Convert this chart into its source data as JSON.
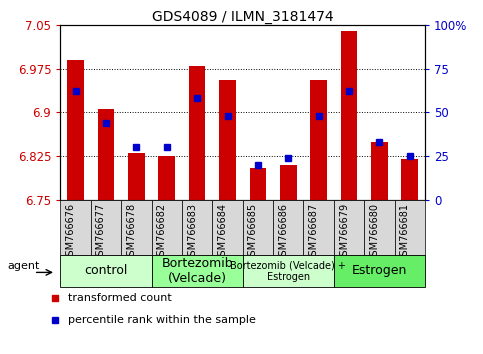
{
  "title": "GDS4089 / ILMN_3181474",
  "samples": [
    "GSM766676",
    "GSM766677",
    "GSM766678",
    "GSM766682",
    "GSM766683",
    "GSM766684",
    "GSM766685",
    "GSM766686",
    "GSM766687",
    "GSM766679",
    "GSM766680",
    "GSM766681"
  ],
  "transformed_count": [
    6.99,
    6.905,
    6.83,
    6.825,
    6.98,
    6.955,
    6.805,
    6.81,
    6.955,
    7.04,
    6.85,
    6.82
  ],
  "percentile_rank": [
    62,
    44,
    30,
    30,
    58,
    48,
    20,
    24,
    48,
    62,
    33,
    25
  ],
  "ylim_left": [
    6.75,
    7.05
  ],
  "ylim_right": [
    0,
    100
  ],
  "yticks_left": [
    6.75,
    6.825,
    6.9,
    6.975,
    7.05
  ],
  "yticks_right": [
    0,
    25,
    50,
    75,
    100
  ],
  "groups": [
    {
      "label": "control",
      "start": 0,
      "end": 3,
      "color": "#ccffcc",
      "fontsize": 9
    },
    {
      "label": "Bortezomib\n(Velcade)",
      "start": 3,
      "end": 6,
      "color": "#99ff99",
      "fontsize": 9
    },
    {
      "label": "Bortezomib (Velcade) +\nEstrogen",
      "start": 6,
      "end": 9,
      "color": "#ccffcc",
      "fontsize": 7
    },
    {
      "label": "Estrogen",
      "start": 9,
      "end": 12,
      "color": "#66ee66",
      "fontsize": 9
    }
  ],
  "bar_color": "#cc0000",
  "marker_color": "#0000cc",
  "bar_width": 0.55,
  "bar_base": 6.75,
  "legend_items": [
    {
      "label": "transformed count",
      "color": "#cc0000"
    },
    {
      "label": "percentile rank within the sample",
      "color": "#0000cc"
    }
  ],
  "agent_label": "agent",
  "ylabel_left_color": "#cc0000",
  "ylabel_right_color": "#0000cc",
  "tick_label_bg": "#d8d8d8",
  "title_fontsize": 10,
  "axis_fontsize": 8.5,
  "sample_fontsize": 7
}
